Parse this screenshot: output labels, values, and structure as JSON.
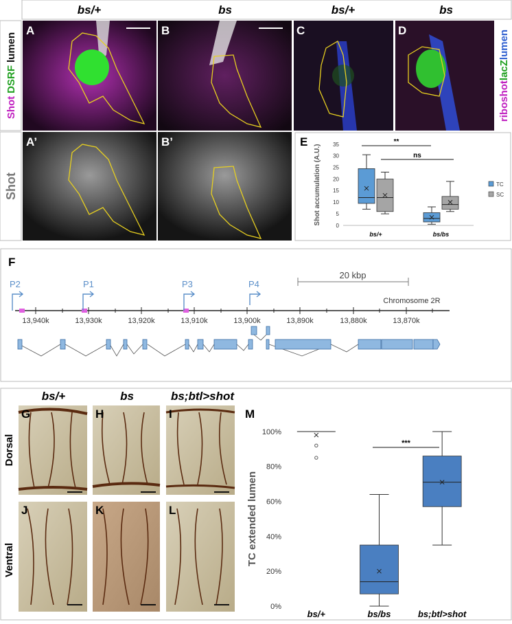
{
  "header": {
    "columns": [
      "bs/+",
      "bs",
      "bs/+",
      "bs"
    ]
  },
  "row_labels": {
    "top": [
      "Shot",
      "DSRF",
      "lumen"
    ],
    "bottom": "Shot",
    "right": [
      "riboshot",
      "lacZ",
      "lumen"
    ]
  },
  "panel_letters": [
    "A",
    "B",
    "C",
    "D",
    "A’",
    "B’",
    "E",
    "F",
    "G",
    "H",
    "I",
    "J",
    "K",
    "L",
    "M"
  ],
  "gene_map": {
    "promoters": [
      "P2",
      "P1",
      "P3",
      "P4"
    ],
    "scale": "20 kbp",
    "chromosome": "Chromosome 2R",
    "ticks": [
      "13,940k",
      "13,930k",
      "13,920k",
      "13,910k",
      "13,900k",
      "13,890k",
      "13,880k",
      "13,870k"
    ]
  },
  "lower": {
    "columns": [
      "bs/+",
      "bs",
      "bs;btl>shot"
    ],
    "rows": [
      "Dorsal",
      "Ventral"
    ]
  },
  "chart_data": [
    {
      "type": "box",
      "ylabel": "Shot accumulation (A.U.)",
      "categories": [
        "bs/+",
        "bs/bs"
      ],
      "ylim": [
        0,
        35
      ],
      "yticks": [
        0,
        5,
        10,
        15,
        20,
        25,
        30,
        35
      ],
      "series": [
        {
          "name": "TC",
          "color": "#5b9bd5",
          "boxes": [
            {
              "min": 7,
              "q1": 9.5,
              "median": 12,
              "q3": 24.5,
              "max": 30.5,
              "mean": 16
            },
            {
              "min": 0.5,
              "q1": 1.5,
              "median": 3,
              "q3": 5.5,
              "max": 8,
              "mean": 3.5
            }
          ]
        },
        {
          "name": "SC",
          "color": "#a5a5a5",
          "boxes": [
            {
              "min": 5,
              "q1": 6,
              "median": 12,
              "q3": 20,
              "max": 23,
              "mean": 13
            },
            {
              "min": 6,
              "q1": 7,
              "median": 9,
              "q3": 12.5,
              "max": 19,
              "mean": 10
            }
          ]
        }
      ],
      "annotations": [
        "**",
        "ns"
      ]
    },
    {
      "type": "box",
      "ylabel": "TC extended lumen",
      "categories": [
        "bs/+",
        "bs/bs",
        "bs;btl>shot"
      ],
      "ylim": [
        0,
        100
      ],
      "yticks": [
        {
          "value": 0,
          "label": "0%"
        },
        {
          "value": 20,
          "label": "20%"
        },
        {
          "value": 40,
          "label": "40%"
        },
        {
          "value": 60,
          "label": "60%"
        },
        {
          "value": 80,
          "label": "80%"
        },
        {
          "value": 100,
          "label": "100%"
        }
      ],
      "series": [
        {
          "color": "#4a7fc1",
          "boxes": [
            {
              "min": 100,
              "q1": 100,
              "median": 100,
              "q3": 100,
              "max": 100,
              "mean": 98
            },
            {
              "min": 0,
              "q1": 7,
              "median": 14,
              "q3": 35,
              "max": 64,
              "mean": 20
            },
            {
              "min": 35,
              "q1": 57,
              "median": 71,
              "q3": 86,
              "max": 100,
              "mean": 71
            }
          ],
          "outliers": [
            [
              92,
              85
            ],
            [],
            []
          ]
        }
      ],
      "annotations": [
        "***"
      ]
    }
  ]
}
